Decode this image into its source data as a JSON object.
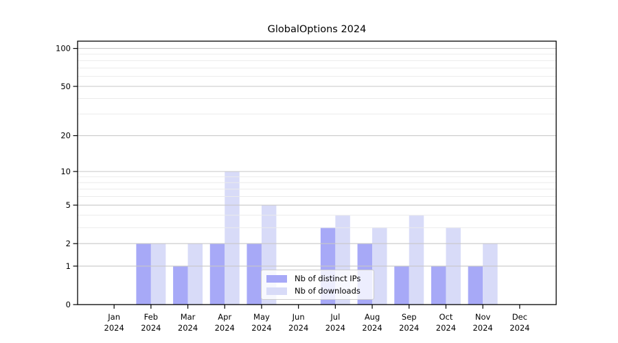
{
  "chart_data": {
    "type": "bar",
    "title": "GlobalOptions 2024",
    "categories": [
      {
        "month": "Jan",
        "year": "2024"
      },
      {
        "month": "Feb",
        "year": "2024"
      },
      {
        "month": "Mar",
        "year": "2024"
      },
      {
        "month": "Apr",
        "year": "2024"
      },
      {
        "month": "May",
        "year": "2024"
      },
      {
        "month": "Jun",
        "year": "2024"
      },
      {
        "month": "Jul",
        "year": "2024"
      },
      {
        "month": "Aug",
        "year": "2024"
      },
      {
        "month": "Sep",
        "year": "2024"
      },
      {
        "month": "Oct",
        "year": "2024"
      },
      {
        "month": "Nov",
        "year": "2024"
      },
      {
        "month": "Dec",
        "year": "2024"
      }
    ],
    "series": [
      {
        "name": "Nb of distinct IPs",
        "color": "#a7a9f7",
        "values": [
          0,
          2,
          1,
          2,
          2,
          0,
          3,
          2,
          1,
          1,
          1,
          0
        ]
      },
      {
        "name": "Nb of downloads",
        "color": "#d8dbf8",
        "values": [
          0,
          2,
          2,
          10,
          5,
          0,
          4,
          3,
          4,
          3,
          2,
          0
        ]
      }
    ],
    "y_axis": {
      "scale": "log1p",
      "major_ticks": [
        0,
        1,
        2,
        5,
        10,
        20,
        50,
        100
      ],
      "minor_ticks": [
        3,
        4,
        6,
        7,
        8,
        9,
        30,
        40,
        60,
        70,
        80,
        90
      ],
      "ylim": [
        0,
        114
      ]
    },
    "grid": true,
    "grid_above_bars": true,
    "legend_position": "lower center"
  },
  "colors": {
    "background": "#ffffff",
    "grid_major": "#c7c7c7",
    "grid_minor": "#ebebeb",
    "axis": "#000000",
    "text": "#000000",
    "legend_border": "#cccccc"
  }
}
